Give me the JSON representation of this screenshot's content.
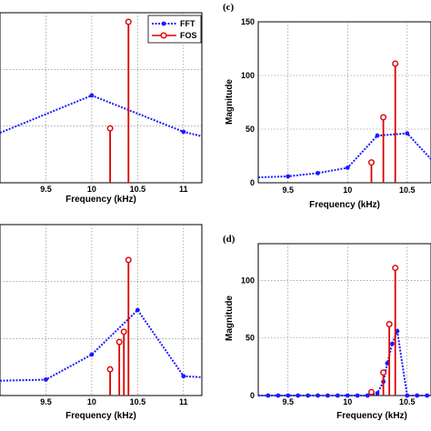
{
  "colors": {
    "fft": "#1a1aff",
    "fos": "#dd0000",
    "grid": "#777777"
  },
  "legend": {
    "fft_label": "FFT",
    "fos_label": "FOS",
    "placement": "top-right"
  },
  "chart_data": [
    {
      "id": "a",
      "type": "line+stem",
      "letter": "",
      "xlabel": "Frequency (kHz)",
      "ylabel": "",
      "xlim": [
        9.0,
        11.2
      ],
      "ylim": [
        0,
        150
      ],
      "xticks": [
        9.5,
        10,
        10.5,
        11
      ],
      "xtick_labels": [
        "9.5",
        "10",
        "10.5",
        "11"
      ],
      "yticks": [],
      "ytick_labels": [],
      "grid": true,
      "legend": true,
      "series": [
        {
          "name": "FFT",
          "style": "line",
          "x": [
            9.0,
            10.0,
            11.0,
            11.2
          ],
          "y": [
            44,
            77,
            45,
            41
          ]
        },
        {
          "name": "FOS",
          "style": "stem",
          "x": [
            10.2,
            10.4
          ],
          "y": [
            48,
            142
          ]
        }
      ]
    },
    {
      "id": "c",
      "type": "line+stem",
      "letter": "(c)",
      "xlabel": "Frequency (kHz)",
      "ylabel": "Magnitude",
      "xlim": [
        9.25,
        10.7
      ],
      "ylim": [
        0,
        150
      ],
      "xticks": [
        9.5,
        10,
        10.5
      ],
      "xtick_labels": [
        "9.5",
        "10",
        "10.5"
      ],
      "yticks": [
        0,
        50,
        100,
        150
      ],
      "ytick_labels": [
        "0",
        "50",
        "100",
        "150"
      ],
      "grid": true,
      "legend": false,
      "series": [
        {
          "name": "FFT",
          "style": "line",
          "x": [
            9.25,
            9.5,
            9.75,
            10.0,
            10.25,
            10.5,
            10.7
          ],
          "y": [
            5,
            6,
            9,
            14,
            44,
            46,
            22
          ]
        },
        {
          "name": "FOS",
          "style": "stem",
          "x": [
            10.2,
            10.3,
            10.4
          ],
          "y": [
            19,
            61,
            111
          ]
        }
      ]
    },
    {
      "id": "b",
      "type": "line+stem",
      "letter": "",
      "xlabel": "Frequency (kHz)",
      "ylabel": "",
      "xlim": [
        9.0,
        11.2
      ],
      "ylim": [
        0,
        150
      ],
      "xticks": [
        9.5,
        10,
        10.5,
        11
      ],
      "xtick_labels": [
        "9.5",
        "10",
        "10.5",
        "11"
      ],
      "yticks": [],
      "ytick_labels": [],
      "grid": true,
      "legend": false,
      "series": [
        {
          "name": "FFT",
          "style": "line",
          "x": [
            9.0,
            9.5,
            10.0,
            10.5,
            11.0,
            11.2
          ],
          "y": [
            13,
            14,
            36,
            75,
            17,
            16
          ]
        },
        {
          "name": "FOS",
          "style": "stem",
          "x": [
            10.2,
            10.3,
            10.35,
            10.4
          ],
          "y": [
            23,
            47,
            56,
            119
          ]
        }
      ]
    },
    {
      "id": "d",
      "type": "line+stem",
      "letter": "(d)",
      "xlabel": "Frequency (kHz)",
      "ylabel": "Magnitude",
      "xlim": [
        9.25,
        10.7
      ],
      "ylim": [
        0,
        150
      ],
      "xticks": [
        9.5,
        10,
        10.5
      ],
      "xtick_labels": [
        "9.5",
        "10",
        "10.5"
      ],
      "yticks": [
        0,
        50,
        100
      ],
      "ytick_labels": [
        "0",
        "50",
        "100"
      ],
      "grid": true,
      "legend": false,
      "series": [
        {
          "name": "FFT",
          "style": "line",
          "x": [
            9.25,
            9.333,
            9.417,
            9.5,
            9.583,
            9.667,
            9.75,
            9.833,
            9.917,
            10.0,
            10.083,
            10.167,
            10.25,
            10.3,
            10.333,
            10.375,
            10.417,
            10.5,
            10.583,
            10.667,
            10.7
          ],
          "y": [
            0,
            0,
            0,
            0,
            0,
            0,
            0,
            0,
            0,
            0,
            0,
            0,
            2,
            12,
            28,
            45,
            56,
            0,
            0,
            0,
            0
          ]
        },
        {
          "name": "FOS",
          "style": "stem",
          "x": [
            10.2,
            10.3,
            10.35,
            10.4
          ],
          "y": [
            3,
            20,
            62,
            111
          ]
        }
      ]
    }
  ]
}
